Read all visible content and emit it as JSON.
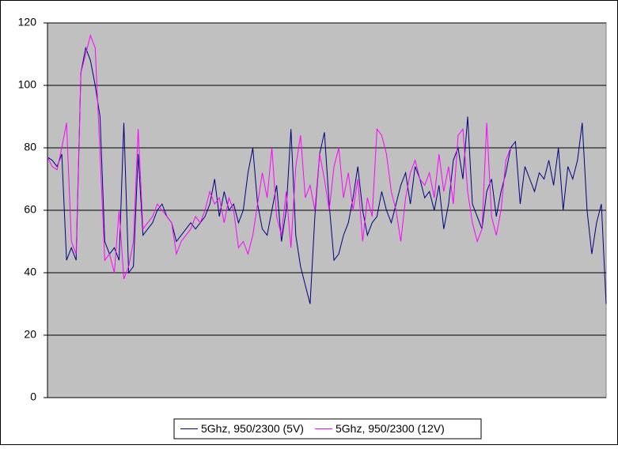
{
  "chart_data": {
    "type": "line",
    "ylim": [
      0,
      120
    ],
    "yticks": [
      0,
      20,
      40,
      60,
      80,
      100,
      120
    ],
    "grid": true,
    "legend": "bottom",
    "series": [
      {
        "name": "5Ghz, 950/2300 (5V)",
        "color": "#000080",
        "values": [
          77,
          76,
          74,
          78,
          44,
          48,
          44,
          104,
          112,
          108,
          100,
          90,
          50,
          46,
          48,
          44,
          88,
          40,
          42,
          78,
          52,
          54,
          56,
          60,
          62,
          58,
          56,
          50,
          52,
          54,
          56,
          54,
          56,
          58,
          62,
          70,
          58,
          66,
          60,
          62,
          56,
          60,
          72,
          80,
          62,
          54,
          52,
          60,
          68,
          50,
          60,
          86,
          52,
          42,
          36,
          30,
          58,
          78,
          85,
          62,
          44,
          46,
          52,
          56,
          64,
          74,
          60,
          52,
          56,
          58,
          66,
          60,
          56,
          62,
          68,
          72,
          62,
          74,
          70,
          64,
          66,
          60,
          68,
          54,
          62,
          76,
          80,
          70,
          90,
          62,
          58,
          54,
          66,
          70,
          58,
          66,
          72,
          80,
          82,
          62,
          74,
          70,
          66,
          72,
          70,
          76,
          68,
          80,
          60,
          74,
          70,
          76,
          88,
          60,
          46,
          56,
          62,
          30
        ]
      },
      {
        "name": "5Ghz, 950/2300 (12V)",
        "color": "#ff00ff",
        "values": [
          77,
          74,
          73,
          80,
          88,
          50,
          46,
          104,
          110,
          116,
          112,
          78,
          44,
          46,
          40,
          60,
          38,
          42,
          50,
          86,
          54,
          56,
          58,
          62,
          60,
          58,
          56,
          46,
          50,
          52,
          54,
          58,
          56,
          60,
          66,
          62,
          64,
          56,
          64,
          60,
          48,
          50,
          46,
          52,
          62,
          72,
          64,
          80,
          58,
          52,
          66,
          48,
          74,
          84,
          64,
          68,
          60,
          78,
          70,
          60,
          74,
          80,
          64,
          72,
          60,
          70,
          50,
          64,
          58,
          86,
          84,
          78,
          66,
          60,
          50,
          64,
          72,
          76,
          70,
          68,
          72,
          64,
          78,
          66,
          74,
          62,
          84,
          86,
          66,
          56,
          50,
          54,
          88,
          58,
          52,
          60,
          76,
          80
        ]
      }
    ]
  }
}
